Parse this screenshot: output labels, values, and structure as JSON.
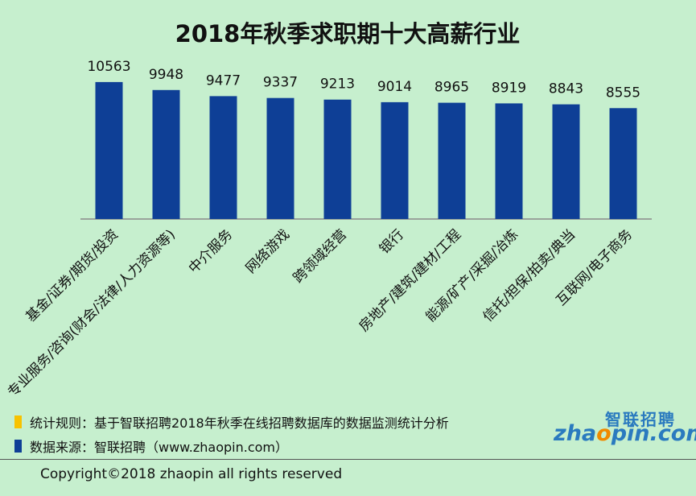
{
  "chart_data": {
    "type": "bar",
    "title": "2018年秋季求职期十大高薪行业",
    "categories": [
      "基金/证券/期货/投资",
      "专业服务/咨询(财会/法律/人力资源等)",
      "中介服务",
      "网络游戏",
      "跨领域经营",
      "银行",
      "房地产/建筑/建材/工程",
      "能源/矿产/采掘/冶炼",
      "信托/担保/拍卖/典当",
      "互联网/电子商务"
    ],
    "values": [
      10563,
      9948,
      9477,
      9337,
      9213,
      9014,
      8965,
      8919,
      8843,
      8555
    ],
    "value_labels": [
      "10563",
      "9948",
      "9477",
      "9337",
      "9213",
      "9014",
      "8965",
      "8919",
      "8843",
      "8555"
    ],
    "ylim": [
      0,
      11800
    ],
    "grid": false,
    "bar_color": "#0e3f96"
  },
  "legend": {
    "rule_text": "统计规则：基于智联招聘2018年秋季在线招聘数据库的数据监测统计分析",
    "rule_color": "#f7c200",
    "source_text": "数据来源：智联招聘（www.zhaopin.com）",
    "source_color": "#0e3f96"
  },
  "logo": {
    "cn": "智联招聘",
    "en_prefix": "zha",
    "en_o": "o",
    "en_suffix": "pin.com"
  },
  "footer": {
    "copyright": "Copyright©2018 zhaopin all rights reserved"
  }
}
